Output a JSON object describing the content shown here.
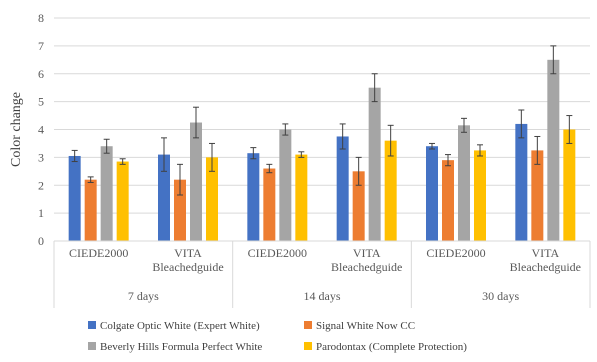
{
  "chart_data": {
    "type": "bar",
    "ylabel": "Color change",
    "xlabel": "",
    "ylim": [
      0,
      8
    ],
    "yticks": [
      0,
      1,
      2,
      3,
      4,
      5,
      6,
      7,
      8
    ],
    "grid": true,
    "legend_position": "bottom",
    "groups": [
      {
        "label": "7 days",
        "categories": [
          "CIEDE2000",
          "VITA\nBleachedguide"
        ]
      },
      {
        "label": "14 days",
        "categories": [
          "CIEDE2000",
          "VITA\nBleachedguide"
        ]
      },
      {
        "label": "30 days",
        "categories": [
          "CIEDE2000",
          "VITA\nBleachedguide"
        ]
      }
    ],
    "series": [
      {
        "name": "Colgate Optic White (Expert White)",
        "color": "#4472C4",
        "values": [
          3.05,
          3.1,
          3.15,
          3.75,
          3.4,
          4.2
        ],
        "errors": [
          0.2,
          0.6,
          0.2,
          0.45,
          0.1,
          0.5
        ]
      },
      {
        "name": "Signal White Now CC",
        "color": "#ED7D31",
        "values": [
          2.2,
          2.2,
          2.6,
          2.5,
          2.9,
          3.25
        ],
        "errors": [
          0.1,
          0.55,
          0.15,
          0.5,
          0.2,
          0.5
        ]
      },
      {
        "name": "Beverly Hills Formula Perfect White",
        "color": "#A5A5A5",
        "values": [
          3.4,
          4.25,
          4.0,
          5.5,
          4.15,
          6.5
        ],
        "errors": [
          0.25,
          0.55,
          0.2,
          0.5,
          0.25,
          0.5
        ]
      },
      {
        "name": "Parodontax (Complete Protection)",
        "color": "#FFC000",
        "values": [
          2.85,
          3.0,
          3.1,
          3.6,
          3.25,
          4.0
        ],
        "errors": [
          0.1,
          0.5,
          0.1,
          0.55,
          0.2,
          0.5
        ]
      }
    ]
  }
}
